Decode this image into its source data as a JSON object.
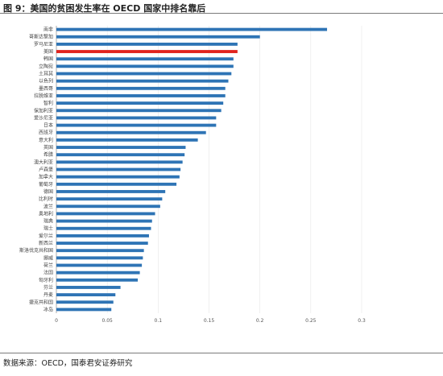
{
  "header": {
    "title": "图 9：美国的贫困发生率在 OECD 国家中排名靠后"
  },
  "footer": {
    "source": "数据来源：OECD，国泰君安证券研究"
  },
  "colors": {
    "bar": "#2e74b5",
    "highlight": "#e0231e",
    "grid": "#e6e6e6",
    "axis": "#999999"
  },
  "chart_data": {
    "type": "bar",
    "orientation": "horizontal",
    "title": "",
    "xlabel": "",
    "ylabel": "",
    "xlim": [
      0,
      0.3
    ],
    "xticks": [
      0,
      0.05,
      0.1,
      0.15,
      0.2,
      0.25,
      0.3
    ],
    "xtick_labels": [
      "0",
      "0.05",
      "0.1",
      "0.15",
      "0.2",
      "0.25",
      "0.3"
    ],
    "grid": true,
    "highlight": "美国",
    "categories": [
      "南非",
      "哥斯达黎加",
      "罗马尼亚",
      "美国",
      "韩国",
      "立陶宛",
      "土耳其",
      "以色列",
      "墨西哥",
      "拉脱维亚",
      "智利",
      "保加利亚",
      "爱沙尼亚",
      "日本",
      "西班牙",
      "意大利",
      "英国",
      "希腊",
      "澳大利亚",
      "卢森堡",
      "加拿大",
      "葡萄牙",
      "德国",
      "比利时",
      "波兰",
      "奥地利",
      "瑞典",
      "瑞士",
      "爱尔兰",
      "新西兰",
      "斯洛伐克共和国",
      "挪威",
      "荷兰",
      "法国",
      "匈牙利",
      "芬兰",
      "丹麦",
      "捷克共和国",
      "冰岛"
    ],
    "values": [
      0.266,
      0.2,
      0.178,
      0.178,
      0.174,
      0.174,
      0.172,
      0.169,
      0.166,
      0.166,
      0.164,
      0.162,
      0.157,
      0.157,
      0.147,
      0.139,
      0.127,
      0.126,
      0.124,
      0.122,
      0.121,
      0.118,
      0.107,
      0.104,
      0.102,
      0.097,
      0.094,
      0.093,
      0.091,
      0.09,
      0.086,
      0.085,
      0.084,
      0.082,
      0.08,
      0.063,
      0.058,
      0.056,
      0.054
    ]
  }
}
